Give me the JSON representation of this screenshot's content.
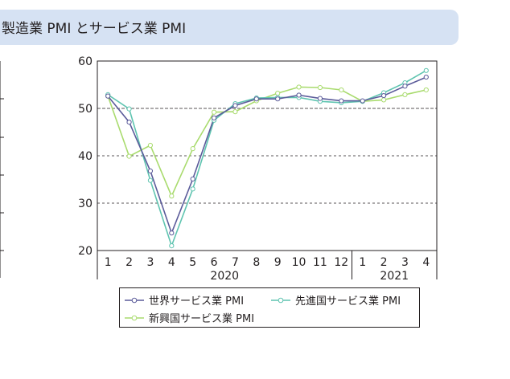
{
  "header": {
    "title": "製造業 PMI とサービス業 PMI"
  },
  "chart_data": {
    "type": "line",
    "categories": [
      "1",
      "2",
      "3",
      "4",
      "5",
      "6",
      "7",
      "8",
      "9",
      "10",
      "11",
      "12",
      "1",
      "2",
      "3",
      "4"
    ],
    "year_groups": [
      {
        "label": "2020",
        "start": 0,
        "end": 11
      },
      {
        "label": "2021",
        "start": 12,
        "end": 15
      }
    ],
    "yticks": [
      20,
      30,
      40,
      50,
      60
    ],
    "ylim": [
      20,
      60
    ],
    "reference_line": 50,
    "grid": "horizontal dashed",
    "legend_position": "bottom",
    "series": [
      {
        "name": "世界サービス業 PMI",
        "color": "#5b5b9a",
        "values": [
          52.6,
          47.1,
          36.8,
          23.7,
          35.1,
          48.0,
          50.6,
          52.0,
          52.0,
          52.8,
          52.1,
          51.6,
          51.6,
          52.7,
          54.7,
          56.6
        ]
      },
      {
        "name": "先進国サービス業 PMI",
        "color": "#5fc4b0",
        "values": [
          52.9,
          49.9,
          34.8,
          21.0,
          33.0,
          47.5,
          51.0,
          52.2,
          52.3,
          52.3,
          51.5,
          51.2,
          51.5,
          53.3,
          55.4,
          58.0
        ]
      },
      {
        "name": "新興国サービス業 PMI",
        "color": "#a9db6e",
        "values": [
          52.6,
          39.9,
          42.2,
          31.5,
          41.5,
          49.2,
          49.3,
          51.6,
          53.2,
          54.5,
          54.4,
          53.9,
          51.5,
          51.8,
          52.9,
          53.9
        ]
      }
    ]
  }
}
